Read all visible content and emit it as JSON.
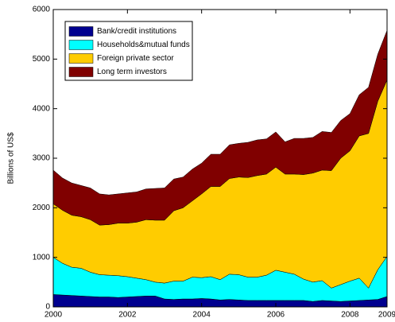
{
  "chart_data": {
    "type": "stacked_area",
    "y_label": "Billions of US$",
    "x": [
      2000,
      2000.25,
      2000.5,
      2000.75,
      2001,
      2001.25,
      2001.5,
      2001.75,
      2002,
      2002.25,
      2002.5,
      2002.75,
      2003,
      2003.25,
      2003.5,
      2003.75,
      2004,
      2004.25,
      2004.5,
      2004.75,
      2005,
      2005.25,
      2005.5,
      2005.75,
      2006,
      2006.25,
      2006.5,
      2006.75,
      2007,
      2007.25,
      2007.5,
      2007.75,
      2008,
      2008.25,
      2008.5,
      2008.75,
      2009
    ],
    "series": [
      {
        "name": "Bank/credit institutions",
        "color": "#00008f",
        "values": [
          250,
          240,
          230,
          220,
          210,
          200,
          200,
          190,
          200,
          210,
          220,
          220,
          160,
          150,
          160,
          160,
          170,
          160,
          140,
          150,
          140,
          130,
          130,
          130,
          130,
          130,
          130,
          130,
          110,
          130,
          120,
          110,
          120,
          130,
          140,
          150,
          210
        ]
      },
      {
        "name": "Households&mutual funds",
        "color": "#00ffff",
        "values": [
          750,
          640,
          570,
          560,
          490,
          450,
          440,
          440,
          410,
          370,
          330,
          280,
          320,
          370,
          360,
          440,
          420,
          450,
          410,
          510,
          510,
          470,
          470,
          510,
          610,
          570,
          530,
          430,
          390,
          400,
          260,
          340,
          400,
          450,
          240,
          600,
          810
        ]
      },
      {
        "name": "Foreign private sector",
        "color": "#ffcc00",
        "values": [
          1080,
          1070,
          1050,
          1040,
          1060,
          1000,
          1020,
          1060,
          1080,
          1130,
          1210,
          1250,
          1270,
          1420,
          1480,
          1540,
          1690,
          1820,
          1880,
          1930,
          1970,
          2010,
          2050,
          2040,
          2080,
          1980,
          2020,
          2110,
          2200,
          2230,
          2370,
          2550,
          2630,
          2870,
          3120,
          3400,
          3560
        ]
      },
      {
        "name": "Long term investors",
        "color": "#800000",
        "values": [
          680,
          650,
          650,
          630,
          640,
          630,
          600,
          590,
          610,
          610,
          620,
          640,
          650,
          640,
          620,
          640,
          620,
          650,
          650,
          680,
          680,
          710,
          720,
          710,
          710,
          650,
          720,
          730,
          720,
          780,
          770,
          760,
          750,
          830,
          930,
          950,
          1000
        ]
      }
    ],
    "xlim": [
      2000,
      2009
    ],
    "xticks": [
      2000,
      2002,
      2004,
      2006,
      2008,
      2009
    ],
    "ylim": [
      0,
      6000
    ],
    "yticks": [
      0,
      1000,
      2000,
      3000,
      4000,
      5000,
      6000
    ],
    "legend": "upper left"
  }
}
